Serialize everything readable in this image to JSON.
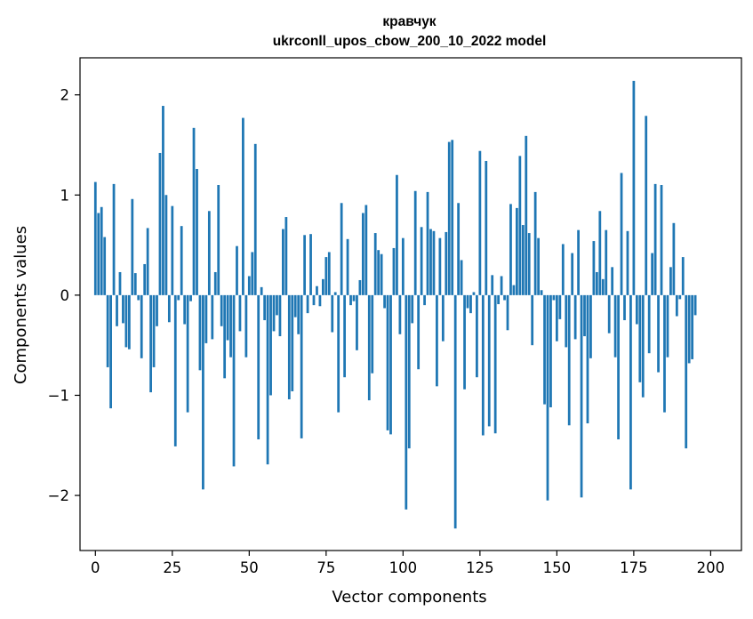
{
  "chart_data": {
    "type": "bar",
    "title": "кравчук",
    "subtitle": "ukrconll_upos_cbow_200_10_2022 model",
    "xlabel": "Vector components",
    "ylabel": "Components values",
    "xlim": [
      -5,
      210
    ],
    "ylim": [
      -2.55,
      2.37
    ],
    "xticks": [
      0,
      25,
      50,
      75,
      100,
      125,
      150,
      175,
      200
    ],
    "xtick_labels": [
      "0",
      "25",
      "50",
      "75",
      "100",
      "125",
      "150",
      "175",
      "200"
    ],
    "yticks": [
      -2,
      -1,
      0,
      1,
      2
    ],
    "ytick_labels": [
      "−2",
      "−1",
      "0",
      "1",
      "2"
    ],
    "bar_color": "#1f77b4",
    "grid": false,
    "values": [
      1.13,
      0.82,
      0.88,
      0.58,
      -0.72,
      -1.13,
      1.11,
      -0.31,
      0.23,
      -0.28,
      -0.52,
      -0.54,
      0.96,
      0.22,
      -0.05,
      -0.63,
      0.31,
      0.67,
      -0.97,
      -0.72,
      -0.31,
      1.42,
      1.89,
      1.0,
      -0.27,
      0.89,
      -1.51,
      -0.05,
      0.69,
      -0.29,
      -1.17,
      -0.06,
      1.67,
      1.26,
      -0.75,
      -1.94,
      -0.48,
      0.84,
      -0.44,
      0.23,
      1.1,
      -0.31,
      -0.83,
      -0.45,
      -0.62,
      -1.71,
      0.49,
      -0.36,
      1.77,
      -0.62,
      0.19,
      0.43,
      1.51,
      -1.44,
      0.08,
      -0.25,
      -1.69,
      -1.0,
      -0.36,
      -0.2,
      -0.41,
      0.66,
      0.78,
      -1.04,
      -0.96,
      -0.22,
      -0.39,
      -1.43,
      0.6,
      -0.18,
      0.61,
      -0.1,
      0.09,
      -0.11,
      0.16,
      0.38,
      0.43,
      -0.37,
      0.03,
      -1.17,
      0.92,
      -0.82,
      0.56,
      -0.1,
      -0.06,
      -0.55,
      0.15,
      0.82,
      0.9,
      -1.05,
      -0.78,
      0.62,
      0.45,
      0.41,
      -0.13,
      -1.35,
      -1.39,
      0.47,
      1.2,
      -0.39,
      0.57,
      -2.14,
      -1.53,
      -0.28,
      1.04,
      -0.74,
      0.68,
      -0.1,
      1.03,
      0.66,
      0.64,
      -0.91,
      0.57,
      -0.46,
      0.63,
      1.53,
      1.55,
      -2.33,
      0.92,
      0.35,
      -0.94,
      -0.13,
      -0.18,
      0.03,
      -0.82,
      1.44,
      -1.4,
      1.34,
      -1.31,
      0.2,
      -1.38,
      -0.09,
      0.19,
      -0.05,
      -0.35,
      0.91,
      0.1,
      0.87,
      1.39,
      0.7,
      1.59,
      0.62,
      -0.5,
      1.03,
      0.57,
      0.05,
      -1.09,
      -2.05,
      -1.12,
      -0.05,
      -0.46,
      -0.24,
      0.51,
      -0.52,
      -1.3,
      0.42,
      -0.44,
      0.65,
      -2.02,
      -0.41,
      -1.28,
      -0.63,
      0.54,
      0.23,
      0.84,
      0.16,
      0.65,
      -0.38,
      0.28,
      -0.62,
      -1.44,
      1.22,
      -0.25,
      0.64,
      -1.94,
      2.14,
      -0.29,
      -0.87,
      -1.02,
      1.79,
      -0.58,
      0.42,
      1.11,
      -0.77,
      1.1,
      -1.17,
      -0.62,
      0.28,
      0.72,
      -0.21,
      -0.04,
      0.38,
      -1.53,
      -0.68,
      -0.64,
      -0.2
    ]
  }
}
